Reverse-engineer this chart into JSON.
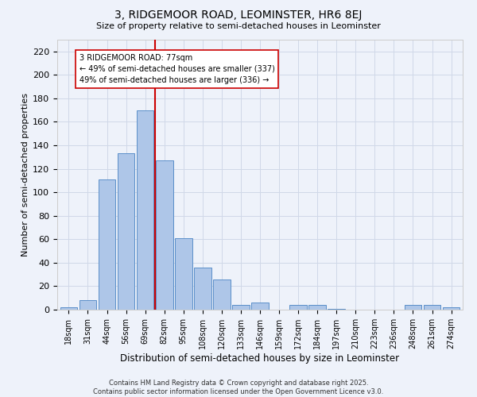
{
  "title": "3, RIDGEMOOR ROAD, LEOMINSTER, HR6 8EJ",
  "subtitle": "Size of property relative to semi-detached houses in Leominster",
  "xlabel": "Distribution of semi-detached houses by size in Leominster",
  "ylabel": "Number of semi-detached properties",
  "categories": [
    "18sqm",
    "31sqm",
    "44sqm",
    "56sqm",
    "69sqm",
    "82sqm",
    "95sqm",
    "108sqm",
    "120sqm",
    "133sqm",
    "146sqm",
    "159sqm",
    "172sqm",
    "184sqm",
    "197sqm",
    "210sqm",
    "223sqm",
    "236sqm",
    "248sqm",
    "261sqm",
    "274sqm"
  ],
  "values": [
    2,
    8,
    111,
    133,
    170,
    127,
    61,
    36,
    26,
    4,
    6,
    0,
    4,
    4,
    1,
    0,
    0,
    0,
    4,
    4,
    2
  ],
  "bar_color": "#aec6e8",
  "bar_edge_color": "#5b8fc9",
  "vline_color": "#cc0000",
  "annotation_text": "3 RIDGEMOOR ROAD: 77sqm\n← 49% of semi-detached houses are smaller (337)\n49% of semi-detached houses are larger (336) →",
  "annotation_box_color": "#ffffff",
  "annotation_box_edge": "#cc0000",
  "ylim": [
    0,
    230
  ],
  "yticks": [
    0,
    20,
    40,
    60,
    80,
    100,
    120,
    140,
    160,
    180,
    200,
    220
  ],
  "footer": "Contains HM Land Registry data © Crown copyright and database right 2025.\nContains public sector information licensed under the Open Government Licence v3.0.",
  "grid_color": "#d0d8e8",
  "background_color": "#eef2fa"
}
